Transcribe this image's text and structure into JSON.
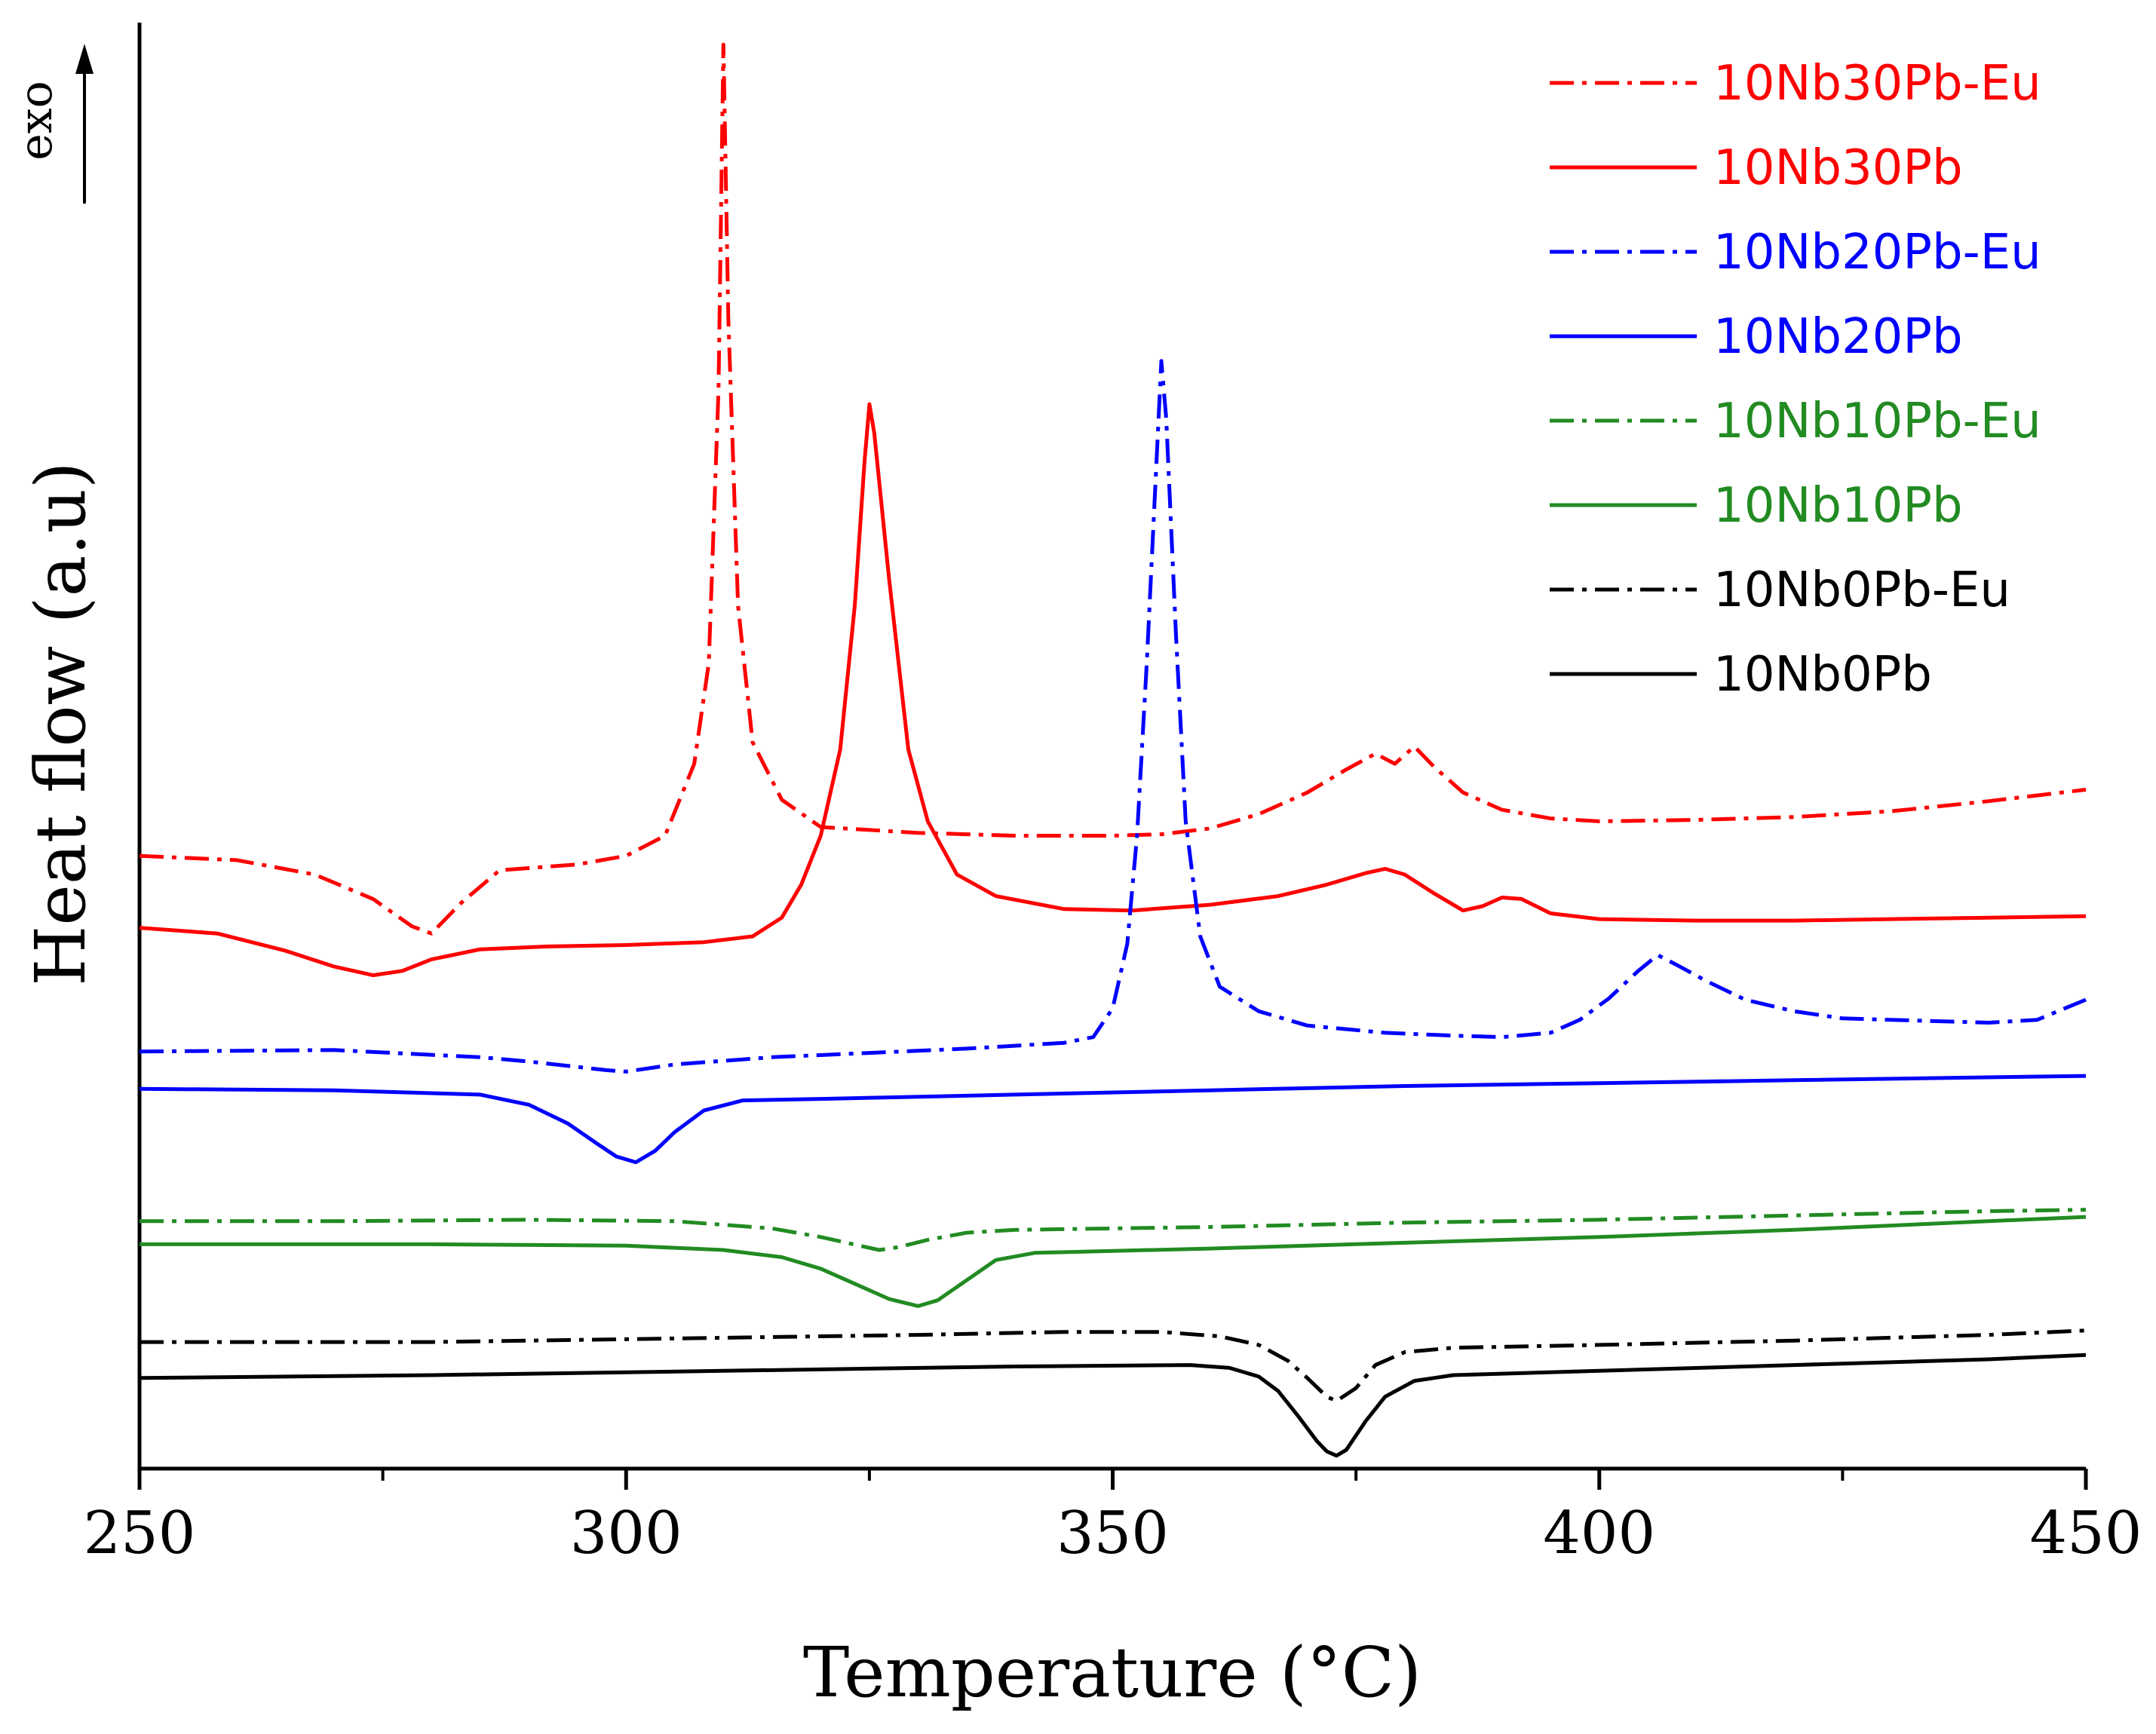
{
  "chart_data": {
    "type": "line",
    "title": "",
    "xlabel": "Temperature (°C)",
    "ylabel": "Heat flow (a.u)",
    "exo_label": "exo",
    "xlim": [
      250,
      450
    ],
    "ylim": [
      0,
      100
    ],
    "xticks": [
      250,
      300,
      350,
      400,
      450
    ],
    "xtick_labels": [
      "250",
      "300",
      "350",
      "400",
      "450"
    ],
    "grid": false,
    "legend_position": "top-right",
    "series": [
      {
        "name": "10Nb30Pb-Eu",
        "color": "#ff0000",
        "style": "dash-dot",
        "points": [
          [
            250,
            42.6
          ],
          [
            260,
            42.3
          ],
          [
            268,
            41.3
          ],
          [
            274,
            39.6
          ],
          [
            278,
            37.7
          ],
          [
            280,
            37.2
          ],
          [
            283,
            39.3
          ],
          [
            287,
            41.6
          ],
          [
            295,
            42.0
          ],
          [
            300,
            42.6
          ],
          [
            304,
            44.0
          ],
          [
            307,
            49.0
          ],
          [
            308.5,
            56
          ],
          [
            309.5,
            75
          ],
          [
            310,
            99.0
          ],
          [
            310.5,
            80
          ],
          [
            311.5,
            60
          ],
          [
            313,
            50.5
          ],
          [
            316,
            46.5
          ],
          [
            320,
            44.6
          ],
          [
            330,
            44.2
          ],
          [
            340,
            44.0
          ],
          [
            350,
            44.0
          ],
          [
            355,
            44.1
          ],
          [
            360,
            44.5
          ],
          [
            365,
            45.5
          ],
          [
            370,
            47.0
          ],
          [
            374,
            48.6
          ],
          [
            377,
            49.7
          ],
          [
            379,
            49.0
          ],
          [
            381,
            50.2
          ],
          [
            383,
            48.8
          ],
          [
            386,
            47.0
          ],
          [
            390,
            45.8
          ],
          [
            395,
            45.2
          ],
          [
            400,
            45.0
          ],
          [
            410,
            45.1
          ],
          [
            420,
            45.3
          ],
          [
            430,
            45.7
          ],
          [
            440,
            46.4
          ],
          [
            450,
            47.2
          ]
        ]
      },
      {
        "name": "10Nb30Pb",
        "color": "#ff0000",
        "style": "solid",
        "points": [
          [
            250,
            37.6
          ],
          [
            258,
            37.2
          ],
          [
            265,
            36.0
          ],
          [
            270,
            34.9
          ],
          [
            274,
            34.3
          ],
          [
            277,
            34.6
          ],
          [
            280,
            35.4
          ],
          [
            285,
            36.1
          ],
          [
            292,
            36.3
          ],
          [
            300,
            36.4
          ],
          [
            308,
            36.6
          ],
          [
            313,
            37.0
          ],
          [
            316,
            38.3
          ],
          [
            318,
            40.6
          ],
          [
            320,
            44.0
          ],
          [
            322,
            50.0
          ],
          [
            323.5,
            60.0
          ],
          [
            324.5,
            70.0
          ],
          [
            325,
            74.0
          ],
          [
            325.5,
            72.0
          ],
          [
            327,
            62.0
          ],
          [
            329,
            50.0
          ],
          [
            331,
            45.0
          ],
          [
            334,
            41.3
          ],
          [
            338,
            39.8
          ],
          [
            345,
            38.9
          ],
          [
            352,
            38.8
          ],
          [
            360,
            39.2
          ],
          [
            367,
            39.8
          ],
          [
            372,
            40.6
          ],
          [
            376,
            41.4
          ],
          [
            378,
            41.7
          ],
          [
            380,
            41.3
          ],
          [
            383,
            40.0
          ],
          [
            386,
            38.8
          ],
          [
            388,
            39.1
          ],
          [
            390,
            39.7
          ],
          [
            392,
            39.6
          ],
          [
            395,
            38.6
          ],
          [
            400,
            38.2
          ],
          [
            410,
            38.1
          ],
          [
            420,
            38.1
          ],
          [
            430,
            38.2
          ],
          [
            440,
            38.3
          ],
          [
            450,
            38.4
          ]
        ]
      },
      {
        "name": "10Nb20Pb-Eu",
        "color": "#0000ff",
        "style": "dash-dot",
        "points": [
          [
            250,
            29.0
          ],
          [
            270,
            29.1
          ],
          [
            285,
            28.6
          ],
          [
            290,
            28.3
          ],
          [
            298,
            27.7
          ],
          [
            300,
            27.6
          ],
          [
            305,
            28.1
          ],
          [
            315,
            28.6
          ],
          [
            325,
            28.9
          ],
          [
            335,
            29.2
          ],
          [
            345,
            29.6
          ],
          [
            348,
            30.0
          ],
          [
            350,
            32.0
          ],
          [
            351.5,
            36.5
          ],
          [
            352.5,
            44.0
          ],
          [
            353.5,
            56.0
          ],
          [
            354.5,
            70.0
          ],
          [
            355,
            77.0
          ],
          [
            355.5,
            73.0
          ],
          [
            356.5,
            58.0
          ],
          [
            357.5,
            45.0
          ],
          [
            359,
            37.0
          ],
          [
            361,
            33.5
          ],
          [
            365,
            31.8
          ],
          [
            370,
            30.8
          ],
          [
            378,
            30.3
          ],
          [
            385,
            30.1
          ],
          [
            390,
            30.0
          ],
          [
            395,
            30.3
          ],
          [
            398,
            31.2
          ],
          [
            401,
            32.7
          ],
          [
            404,
            34.6
          ],
          [
            406,
            35.7
          ],
          [
            408,
            35.0
          ],
          [
            411,
            33.9
          ],
          [
            415,
            32.6
          ],
          [
            420,
            31.8
          ],
          [
            425,
            31.3
          ],
          [
            430,
            31.2
          ],
          [
            440,
            31.0
          ],
          [
            445,
            31.2
          ],
          [
            450,
            32.6
          ]
        ]
      },
      {
        "name": "10Nb20Pb",
        "color": "#0000ff",
        "style": "solid",
        "points": [
          [
            250,
            26.4
          ],
          [
            270,
            26.3
          ],
          [
            285,
            26.0
          ],
          [
            290,
            25.3
          ],
          [
            294,
            24.0
          ],
          [
            297,
            22.6
          ],
          [
            299,
            21.7
          ],
          [
            301,
            21.3
          ],
          [
            303,
            22.1
          ],
          [
            305,
            23.4
          ],
          [
            308,
            24.9
          ],
          [
            312,
            25.6
          ],
          [
            320,
            25.7
          ],
          [
            340,
            26.0
          ],
          [
            360,
            26.3
          ],
          [
            380,
            26.6
          ],
          [
            400,
            26.8
          ],
          [
            420,
            27.0
          ],
          [
            450,
            27.3
          ]
        ]
      },
      {
        "name": "10Nb10Pb-Eu",
        "color": "#228b22",
        "style": "dash-dot",
        "points": [
          [
            250,
            17.2
          ],
          [
            270,
            17.2
          ],
          [
            290,
            17.3
          ],
          [
            305,
            17.2
          ],
          [
            315,
            16.7
          ],
          [
            320,
            16.1
          ],
          [
            324,
            15.5
          ],
          [
            326,
            15.2
          ],
          [
            328,
            15.4
          ],
          [
            331,
            15.9
          ],
          [
            335,
            16.4
          ],
          [
            340,
            16.6
          ],
          [
            360,
            16.8
          ],
          [
            380,
            17.1
          ],
          [
            400,
            17.3
          ],
          [
            420,
            17.6
          ],
          [
            440,
            17.9
          ],
          [
            450,
            18.0
          ]
        ]
      },
      {
        "name": "10Nb10Pb",
        "color": "#228b22",
        "style": "solid",
        "points": [
          [
            250,
            15.6
          ],
          [
            280,
            15.6
          ],
          [
            300,
            15.5
          ],
          [
            310,
            15.2
          ],
          [
            316,
            14.7
          ],
          [
            320,
            13.9
          ],
          [
            324,
            12.7
          ],
          [
            327,
            11.8
          ],
          [
            330,
            11.3
          ],
          [
            332,
            11.7
          ],
          [
            335,
            13.1
          ],
          [
            338,
            14.5
          ],
          [
            342,
            15.0
          ],
          [
            360,
            15.3
          ],
          [
            380,
            15.7
          ],
          [
            400,
            16.1
          ],
          [
            420,
            16.6
          ],
          [
            440,
            17.2
          ],
          [
            450,
            17.5
          ]
        ]
      },
      {
        "name": "10Nb0Pb-Eu",
        "color": "#000000",
        "style": "dash-dot",
        "points": [
          [
            250,
            8.8
          ],
          [
            280,
            8.8
          ],
          [
            310,
            9.1
          ],
          [
            330,
            9.3
          ],
          [
            345,
            9.5
          ],
          [
            355,
            9.5
          ],
          [
            361,
            9.2
          ],
          [
            365,
            8.6
          ],
          [
            368,
            7.5
          ],
          [
            370,
            6.3
          ],
          [
            372,
            5.0
          ],
          [
            373,
            4.7
          ],
          [
            375,
            5.6
          ],
          [
            377,
            7.2
          ],
          [
            380,
            8.1
          ],
          [
            385,
            8.4
          ],
          [
            400,
            8.6
          ],
          [
            420,
            8.9
          ],
          [
            440,
            9.3
          ],
          [
            450,
            9.6
          ]
        ]
      },
      {
        "name": "10Nb0Pb",
        "color": "#000000",
        "style": "solid",
        "points": [
          [
            250,
            6.3
          ],
          [
            280,
            6.5
          ],
          [
            310,
            6.8
          ],
          [
            340,
            7.1
          ],
          [
            358,
            7.2
          ],
          [
            362,
            7.0
          ],
          [
            365,
            6.4
          ],
          [
            367,
            5.4
          ],
          [
            369,
            3.7
          ],
          [
            371,
            1.9
          ],
          [
            372,
            1.2
          ],
          [
            373,
            0.9
          ],
          [
            374,
            1.3
          ],
          [
            376,
            3.3
          ],
          [
            378,
            5.0
          ],
          [
            381,
            6.1
          ],
          [
            385,
            6.5
          ],
          [
            400,
            6.8
          ],
          [
            420,
            7.2
          ],
          [
            440,
            7.6
          ],
          [
            450,
            7.9
          ]
        ]
      }
    ]
  }
}
